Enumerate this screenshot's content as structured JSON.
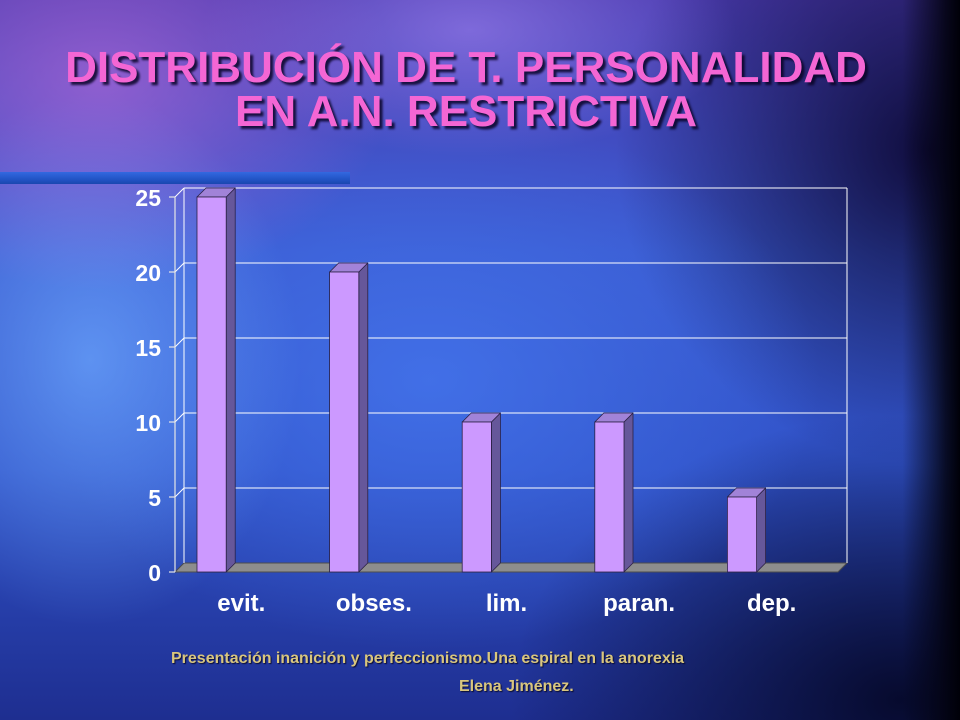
{
  "slide": {
    "footer": {
      "presentation": "Presentación inanición y perfeccionismo.Una espiral en la anorexia",
      "author": "Elena Jiménez."
    },
    "colors": {
      "title": "#f466d4",
      "footer": "#d9c67e",
      "accent_bar": "#2356c8"
    }
  },
  "chart_data": {
    "type": "bar",
    "three_d": true,
    "title": "DISTRIBUCIÓN DE T. PERSONALIDAD EN A.N. RESTRICTIVA",
    "xlabel": "",
    "ylabel": "",
    "categories": [
      "evit.",
      "obses.",
      "lim.",
      "paran.",
      "dep."
    ],
    "values": [
      25,
      20,
      10,
      10,
      5
    ],
    "ylim": [
      0,
      25
    ],
    "y_ticks": [
      0,
      5,
      10,
      15,
      20,
      25
    ],
    "grid": true,
    "legend": "none",
    "colors": {
      "bar_front": "#cc99ff",
      "bar_top": "#a183d8",
      "bar_side": "#66579a",
      "bar_edge": "#2b2145",
      "floor": "#8d8d8d",
      "floor_edge": "#4d4d4d",
      "gridline": "#ffffff",
      "axis": "#e6e6e6",
      "labels": "#ffffff"
    }
  }
}
